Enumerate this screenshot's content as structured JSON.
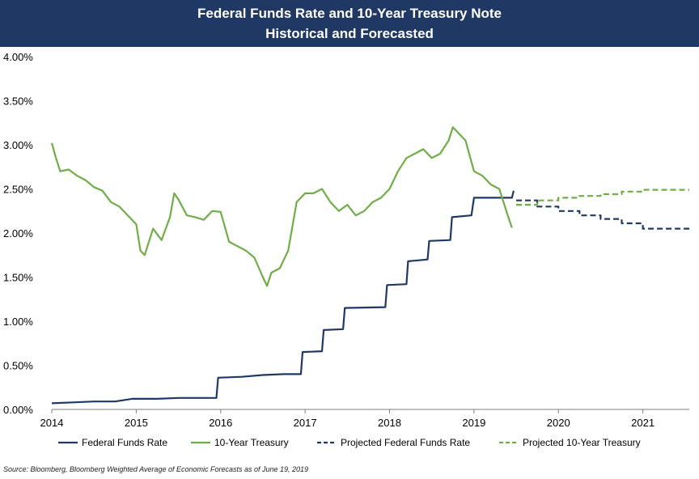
{
  "chart_data": {
    "type": "line",
    "title": "Federal Funds Rate and 10-Year Treasury Note",
    "subtitle": "Historical and Forecasted",
    "xlabel": "",
    "ylabel": "",
    "xlim": [
      2014.0,
      2021.55
    ],
    "ylim": [
      0,
      4
    ],
    "x_ticks": [
      2014,
      2015,
      2016,
      2017,
      2018,
      2019,
      2020,
      2021
    ],
    "x_tick_labels": [
      "2014",
      "2015",
      "2016",
      "2017",
      "2018",
      "2019",
      "2020",
      "2021"
    ],
    "y_ticks": [
      0,
      0.5,
      1.0,
      1.5,
      2.0,
      2.5,
      3.0,
      3.5,
      4.0
    ],
    "y_tick_labels": [
      "0.00%",
      "0.50%",
      "1.00%",
      "1.50%",
      "2.00%",
      "2.50%",
      "3.00%",
      "3.50%",
      "4.00%"
    ],
    "grid": false,
    "legend_position": "bottom",
    "series": [
      {
        "name": "Federal Funds Rate",
        "color": "#1f3864",
        "style": "solid",
        "x": [
          2014.0,
          2014.25,
          2014.5,
          2014.75,
          2014.95,
          2015.0,
          2015.25,
          2015.5,
          2015.75,
          2015.95,
          2015.97,
          2016.25,
          2016.5,
          2016.75,
          2016.95,
          2016.97,
          2017.2,
          2017.22,
          2017.45,
          2017.47,
          2017.95,
          2017.97,
          2018.2,
          2018.22,
          2018.45,
          2018.47,
          2018.72,
          2018.74,
          2018.97,
          2019.0,
          2019.25,
          2019.45,
          2019.47
        ],
        "values": [
          0.07,
          0.08,
          0.09,
          0.09,
          0.12,
          0.12,
          0.12,
          0.13,
          0.13,
          0.13,
          0.36,
          0.37,
          0.39,
          0.4,
          0.4,
          0.65,
          0.66,
          0.9,
          0.91,
          1.15,
          1.16,
          1.41,
          1.42,
          1.68,
          1.7,
          1.91,
          1.92,
          2.18,
          2.2,
          2.4,
          2.4,
          2.4,
          2.48
        ]
      },
      {
        "name": "10-Year Treasury",
        "color": "#70ad47",
        "style": "solid",
        "x": [
          2014.0,
          2014.05,
          2014.1,
          2014.2,
          2014.3,
          2014.4,
          2014.5,
          2014.6,
          2014.7,
          2014.8,
          2014.9,
          2015.0,
          2015.05,
          2015.1,
          2015.2,
          2015.3,
          2015.4,
          2015.45,
          2015.5,
          2015.6,
          2015.7,
          2015.8,
          2015.9,
          2016.0,
          2016.1,
          2016.2,
          2016.3,
          2016.4,
          2016.5,
          2016.55,
          2016.6,
          2016.7,
          2016.8,
          2016.9,
          2017.0,
          2017.1,
          2017.2,
          2017.3,
          2017.4,
          2017.5,
          2017.6,
          2017.7,
          2017.8,
          2017.9,
          2018.0,
          2018.1,
          2018.2,
          2018.3,
          2018.4,
          2018.5,
          2018.6,
          2018.7,
          2018.75,
          2018.8,
          2018.9,
          2019.0,
          2019.1,
          2019.2,
          2019.3,
          2019.4,
          2019.45
        ],
        "values": [
          3.02,
          2.85,
          2.7,
          2.72,
          2.65,
          2.6,
          2.52,
          2.48,
          2.35,
          2.3,
          2.2,
          2.1,
          1.8,
          1.75,
          2.05,
          1.92,
          2.18,
          2.45,
          2.38,
          2.2,
          2.18,
          2.15,
          2.25,
          2.24,
          1.9,
          1.85,
          1.8,
          1.72,
          1.5,
          1.4,
          1.55,
          1.6,
          1.8,
          2.35,
          2.45,
          2.45,
          2.5,
          2.35,
          2.25,
          2.32,
          2.2,
          2.25,
          2.35,
          2.4,
          2.5,
          2.7,
          2.85,
          2.9,
          2.95,
          2.85,
          2.9,
          3.05,
          3.2,
          3.15,
          3.05,
          2.7,
          2.65,
          2.55,
          2.5,
          2.2,
          2.06
        ]
      },
      {
        "name": "Projected Federal Funds Rate",
        "color": "#1f3864",
        "style": "dashed",
        "x": [
          2019.5,
          2019.75,
          2019.75,
          2020.0,
          2020.0,
          2020.25,
          2020.25,
          2020.5,
          2020.5,
          2020.75,
          2020.75,
          2021.0,
          2021.0,
          2021.55
        ],
        "values": [
          2.37,
          2.37,
          2.3,
          2.3,
          2.25,
          2.25,
          2.2,
          2.2,
          2.16,
          2.16,
          2.11,
          2.11,
          2.05,
          2.05
        ]
      },
      {
        "name": "Projected 10-Year Treasury",
        "color": "#70ad47",
        "style": "dashed",
        "x": [
          2019.5,
          2019.75,
          2019.75,
          2020.0,
          2020.0,
          2020.25,
          2020.25,
          2020.5,
          2020.5,
          2020.75,
          2020.75,
          2021.0,
          2021.0,
          2021.55
        ],
        "values": [
          2.32,
          2.32,
          2.37,
          2.37,
          2.4,
          2.4,
          2.42,
          2.42,
          2.44,
          2.44,
          2.47,
          2.47,
          2.49,
          2.49
        ]
      }
    ]
  },
  "source": "Source: Bloomberg, Bloomberg Weighted Average of Economic Forecasts as of June 19, 2019"
}
